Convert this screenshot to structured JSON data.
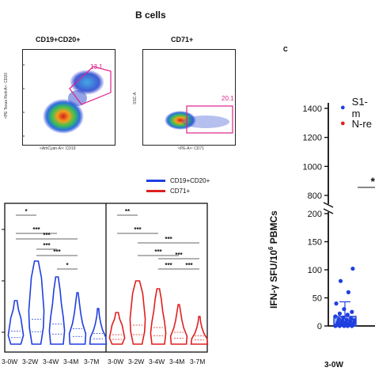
{
  "panel_b": {
    "title": "B cells",
    "gates": [
      {
        "label": "CD19+CD20+",
        "gate_value": "13.1",
        "x_axis": "<AmCyan-A>: CD19",
        "y_axis": "<PE Texas Red-A>: CD20"
      },
      {
        "label": "CD71+",
        "gate_value": "20.1",
        "x_axis": "<PE-A>: CD71",
        "y_axis": "SSC-A"
      }
    ]
  },
  "panel_c": {
    "letter": "C"
  },
  "violin": {
    "legend": [
      {
        "label": "CD19+CD20+",
        "color": "#1f3fe0"
      },
      {
        "label": "CD71+",
        "color": "#e01f1f"
      }
    ],
    "groups": [
      {
        "series": "CD19+CD20+",
        "color": "#1f3fe0",
        "categories": [
          "3-0W",
          "3-2W",
          "3-4W",
          "3-4M",
          "3-7M"
        ],
        "significance": [
          "*",
          "***",
          "***",
          "***",
          "***",
          "*"
        ]
      },
      {
        "series": "CD71+",
        "color": "#e01f1f",
        "categories": [
          "3-0W",
          "3-2W",
          "3-4W",
          "3-4M",
          "3-7M"
        ],
        "significance": [
          "**",
          "***",
          "***",
          "***",
          "***",
          "***",
          "***"
        ]
      }
    ]
  },
  "chart_data": {
    "type": "scatter",
    "ylabel": "IFN-γ SFU/10^6 PBMCs",
    "ylabel_parts": {
      "main": "IFN-γ SFU/10",
      "sup": "6",
      "tail": " PBMCs"
    },
    "y_ticks_upper": [
      800,
      1000,
      1200,
      1400
    ],
    "y_ticks_lower": [
      0,
      50,
      100,
      150,
      200
    ],
    "y_break": true,
    "categories": [
      "3-0W"
    ],
    "legend": [
      {
        "label": "S1-m",
        "color": "#1f3fe0"
      },
      {
        "label": "N-re",
        "color": "#e01f1f"
      }
    ],
    "significance": [
      "*"
    ],
    "series": [
      {
        "name": "S1-m",
        "color": "#1f3fe0",
        "x": "3-0W",
        "values": [
          0,
          0,
          0,
          0,
          0,
          1,
          1,
          2,
          2,
          3,
          3,
          4,
          5,
          5,
          6,
          7,
          8,
          9,
          10,
          11,
          12,
          13,
          15,
          17,
          20,
          22,
          25,
          30,
          40,
          60,
          80,
          102
        ],
        "mean": 17,
        "sd": 26
      }
    ]
  }
}
